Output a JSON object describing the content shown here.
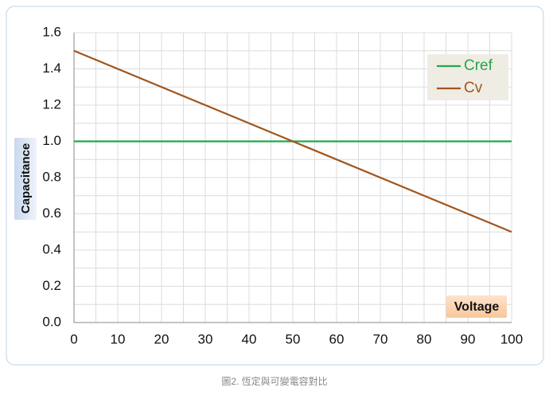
{
  "chart_data": {
    "type": "line",
    "x": [
      0,
      100
    ],
    "series": [
      {
        "name": "Cref",
        "color": "#22a84a",
        "values": [
          1.0,
          1.0
        ]
      },
      {
        "name": "Cv",
        "color": "#a0561e",
        "values": [
          1.5,
          0.5
        ]
      }
    ],
    "xlabel": "Voltage",
    "ylabel": "Capacitance",
    "xlim": [
      0,
      100
    ],
    "xticks": [
      0,
      10,
      20,
      30,
      40,
      50,
      60,
      70,
      80,
      90,
      100
    ],
    "ylim": [
      0,
      1.6
    ],
    "yticks": [
      {
        "value": 0,
        "label": "0.0"
      },
      0.2,
      0.4,
      0.6,
      0.8,
      {
        "value": 1,
        "label": "1.0"
      },
      1.2,
      1.4,
      1.6
    ],
    "grid": true,
    "minor_grid": true,
    "legend": "upper right",
    "caption": "圖2. 恆定與可變電容對比"
  }
}
